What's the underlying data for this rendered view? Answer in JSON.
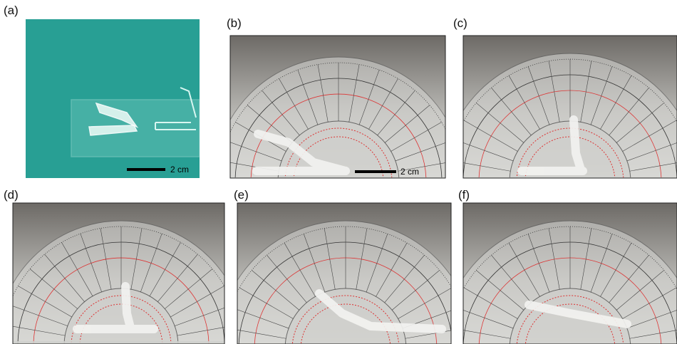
{
  "panels": [
    {
      "label": "(a)",
      "scale_bar": "2 cm"
    },
    {
      "label": "(b)",
      "scale_bar": "2 cm"
    },
    {
      "label": "(c)"
    },
    {
      "label": "(d)"
    },
    {
      "label": "(e)"
    },
    {
      "label": "(f)"
    }
  ]
}
